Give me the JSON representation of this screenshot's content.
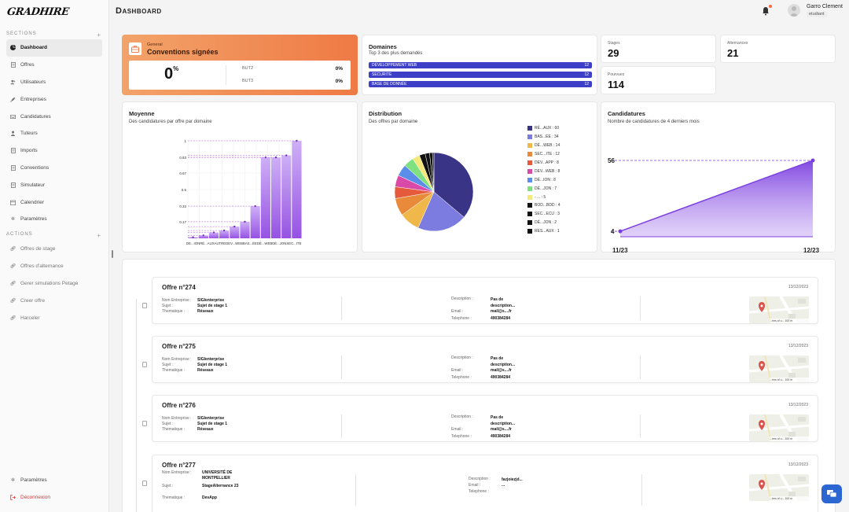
{
  "app": {
    "logo": "GRADHIRE"
  },
  "header": {
    "title": "Dashboard",
    "user_name": "Garro Clement",
    "user_role": "etudiant"
  },
  "sidebar": {
    "sections_label": "SECTIONS",
    "actions_label": "ACTIONS",
    "items": [
      {
        "label": "Dashboard",
        "icon": "pie-chart-icon"
      },
      {
        "label": "Offres",
        "icon": "document-icon"
      },
      {
        "label": "Utilisateurs",
        "icon": "users-icon"
      },
      {
        "label": "Entreprises",
        "icon": "rocket-icon"
      },
      {
        "label": "Candidatures",
        "icon": "inbox-icon"
      },
      {
        "label": "Tuteurs",
        "icon": "user-icon"
      },
      {
        "label": "Imports",
        "icon": "document-icon"
      },
      {
        "label": "Conventions",
        "icon": "document-icon"
      },
      {
        "label": "Simulateur",
        "icon": "document-icon"
      },
      {
        "label": "Calendrier",
        "icon": "calendar-icon"
      },
      {
        "label": "Paramètres",
        "icon": "gear-icon"
      }
    ],
    "actions": [
      {
        "label": "Offres de stage"
      },
      {
        "label": "Offres d'alternance"
      },
      {
        "label": "Gerer simulations Petage"
      },
      {
        "label": "Creer offre"
      },
      {
        "label": "Harceler"
      }
    ],
    "bottom": [
      {
        "label": "Paramètres"
      },
      {
        "label": "Déconnexion"
      }
    ]
  },
  "conventions": {
    "small_label": "General",
    "title": "Conventions signées",
    "percent": "0",
    "percent_sign": "%",
    "rows": [
      {
        "label": "BUT2",
        "value": "0%"
      },
      {
        "label": "BUT3",
        "value": "0%"
      }
    ]
  },
  "domaines": {
    "title": "Domaines",
    "subtitle": "Top 3 des plus demandés",
    "bars": [
      {
        "label": "DÉVELOPPEMENT WEB",
        "value": "12"
      },
      {
        "label": "SECURITE",
        "value": "12"
      },
      {
        "label": "BASE DE DONNÉE",
        "value": "12"
      }
    ]
  },
  "stats": {
    "stages": {
      "label": "Stages",
      "value": "29"
    },
    "alternances": {
      "label": "Alternances",
      "value": "21"
    },
    "pourvues": {
      "label": "Pourvues",
      "value": "114"
    }
  },
  "moyenne": {
    "title": "Moyenne",
    "subtitle": "Des candidatures par offre par domaine"
  },
  "distribution": {
    "title": "Distribution",
    "subtitle": "Des offres par domaine"
  },
  "candidatures": {
    "title": "Candidatures",
    "subtitle": "Nombre de candidatures de 4 derniers mois"
  },
  "chart_data": [
    {
      "type": "bar",
      "title": "Moyenne",
      "subtitle": "Des candidatures par offre par domaine",
      "categories": [
        "DÉ...ION",
        "RÉ...AUX",
        "AUTRE",
        "DEV...WEB",
        "BAS...ÉE",
        "DÉ...WEB",
        "DÉ...JON",
        "SEC...ITE",
        "",
        "",
        ""
      ],
      "x_tick_labels": [
        "DE...ION",
        "RÉ...AUX",
        "AUTRE",
        "DEV...WEB",
        "BAS...ÉE",
        "DÉ...WEB",
        "DÉ...JON",
        "SEC...ITE"
      ],
      "values": [
        0.01,
        0.03,
        0.06,
        0.08,
        0.12,
        0.17,
        0.33,
        0.83,
        0.83,
        0.85,
        1.0
      ],
      "yticks": [
        "0.17",
        "0.33",
        "0.5",
        "0.67",
        "0.83",
        "1"
      ],
      "ylim": [
        0,
        1
      ],
      "color": "#9b59e0"
    },
    {
      "type": "pie",
      "title": "Distribution",
      "subtitle": "Des offres par domaine",
      "slices": [
        {
          "label": "RÉ...AUX : 60",
          "value": 60,
          "color": "#3a3486"
        },
        {
          "label": "BAS...ÉE : 34",
          "value": 34,
          "color": "#7b7be0"
        },
        {
          "label": "DÉ...WEB : 14",
          "value": 14,
          "color": "#f0b84a"
        },
        {
          "label": "SEC...ITE : 12",
          "value": 12,
          "color": "#e88a3a"
        },
        {
          "label": "DEV...APP : 8",
          "value": 8,
          "color": "#e55a3a"
        },
        {
          "label": "DEV...WEB : 8",
          "value": 8,
          "color": "#d94aa8"
        },
        {
          "label": "DÉ...ION : 8",
          "value": 8,
          "color": "#5b8ee8"
        },
        {
          "label": "DÉ...JON : 7",
          "value": 7,
          "color": "#7ee07e"
        },
        {
          "label": "- ... : 5",
          "value": 5,
          "color": "#f5e87a"
        },
        {
          "label": "BOD...BDD : 4",
          "value": 4,
          "color": "#111111"
        },
        {
          "label": "SEC...ECU : 3",
          "value": 3,
          "color": "#111111"
        },
        {
          "label": "DÉ...JON : 2",
          "value": 2,
          "color": "#111111"
        },
        {
          "label": "RES...AUX : 1",
          "value": 1,
          "color": "#111111"
        }
      ]
    },
    {
      "type": "area",
      "title": "Candidatures",
      "subtitle": "Nombre de candidatures de 4 derniers mois",
      "x": [
        "11/23",
        "12/23"
      ],
      "values": [
        4,
        56
      ],
      "color": "#7b3fe0"
    }
  ],
  "offers": [
    {
      "title": "Offre n°274",
      "date": "13/12/2023",
      "fields": [
        {
          "label": "Nom Entreprise :",
          "value": "SIGIenterprise"
        },
        {
          "label": "Sujet :",
          "value": "Sujet de stage 1"
        },
        {
          "label": "Thematique :",
          "value": "Réseaux"
        }
      ],
      "desc_label": "Description :",
      "desc_value": "Pas de description...",
      "email_label": "Email :",
      "email_value": "mail@s....fr",
      "tel_label": "Telephone :",
      "tel_value": "490384284",
      "map_text": "...rms of u... 100 m"
    },
    {
      "title": "Offre n°275",
      "date": "13/12/2023",
      "fields": [
        {
          "label": "Nom Entreprise :",
          "value": "SIGIenterprise"
        },
        {
          "label": "Sujet :",
          "value": "Sujet de stage 1"
        },
        {
          "label": "Thematique :",
          "value": "Réseaux"
        }
      ],
      "desc_label": "Description :",
      "desc_value": "Pas de description...",
      "email_label": "Email :",
      "email_value": "mail@s....fr",
      "tel_label": "Telephone :",
      "tel_value": "490384284",
      "map_text": "...rms of u... 100 m"
    },
    {
      "title": "Offre n°276",
      "date": "13/12/2023",
      "fields": [
        {
          "label": "Nom Entreprise :",
          "value": "SIGIenterprise"
        },
        {
          "label": "Sujet :",
          "value": "Sujet de stage 1"
        },
        {
          "label": "Thematique :",
          "value": "Réseaux"
        }
      ],
      "desc_label": "Description :",
      "desc_value": "Pas de description...",
      "email_label": "Email :",
      "email_value": "mail@s....fr",
      "tel_label": "Telephone :",
      "tel_value": "490384284",
      "map_text": "...rms of u... 100 m"
    },
    {
      "title": "Offre n°277",
      "date": "13/12/2023",
      "fields": [
        {
          "label": "Nom Entreprise :",
          "value": "UNIVERSITÉ DE MONTPELLIER"
        },
        {
          "label": "Sujet :",
          "value": "StageAlternance 23"
        },
        {
          "label": "Thematique :",
          "value": "DevApp"
        }
      ],
      "desc_label": "Description :",
      "desc_value": "fazjoiezjd...",
      "email_label": "Email :",
      "email_value": "...",
      "tel_label": "Telephone :",
      "tel_value": "",
      "map_text": "...rms of u... 100 m"
    }
  ]
}
